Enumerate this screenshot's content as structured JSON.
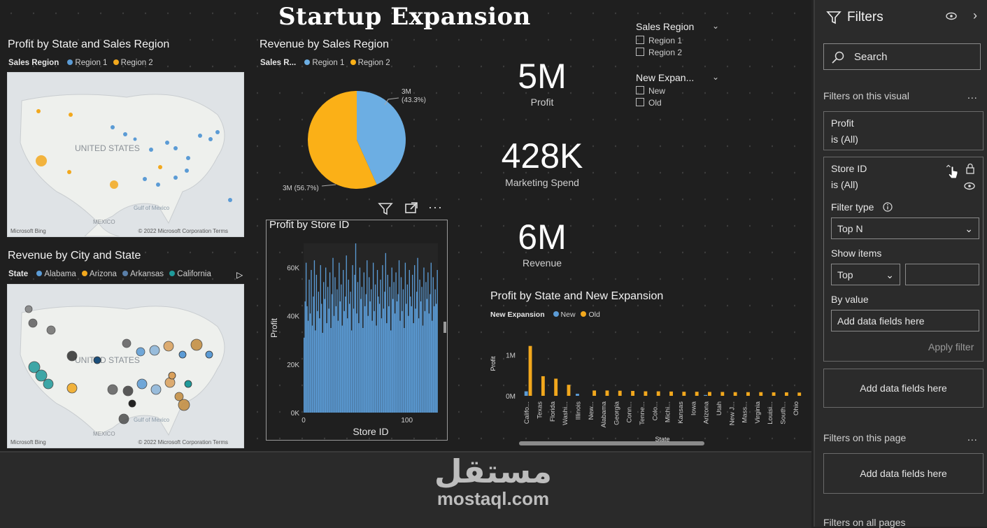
{
  "report": {
    "title": "Startup Expansion"
  },
  "map1": {
    "title": "Profit by State and Sales Region",
    "legend_title": "Sales Region",
    "legend": [
      {
        "label": "Region 1",
        "color": "#5b9bd5"
      },
      {
        "label": "Region 2",
        "color": "#f2a81d"
      }
    ],
    "country_label": "UNITED STATES",
    "gulf_label": "Gulf of Mexico",
    "mexico_label": "MEXICO",
    "bing_label": "Microsoft Bing",
    "copyright": "© 2022 Microsoft Corporation  Terms"
  },
  "map2": {
    "title": "Revenue by City and State",
    "legend_title": "State",
    "legend": [
      {
        "label": "Alabama",
        "color": "#5b9bd5"
      },
      {
        "label": "Arizona",
        "color": "#f2a81d"
      },
      {
        "label": "Arkansas",
        "color": "#5a7fa8"
      },
      {
        "label": "California",
        "color": "#1f9a9a"
      }
    ],
    "country_label": "UNITED STATES",
    "gulf_label": "Gulf of Mexico",
    "mexico_label": "MEXICO",
    "bing_label": "Microsoft Bing",
    "copyright": "© 2022 Microsoft Corporation  Terms"
  },
  "pie": {
    "title": "Revenue by Sales Region",
    "legend_title": "Sales R...",
    "legend": [
      {
        "label": "Region 1",
        "color": "#6caee3"
      },
      {
        "label": "Region 2",
        "color": "#fbb017"
      }
    ],
    "label_region1_value": "3M",
    "label_region1_pct": "(43.3%)",
    "label_region2": "3M (56.7%)"
  },
  "kpis": [
    {
      "value": "5M",
      "label": "Profit"
    },
    {
      "value": "428K",
      "label": "Marketing Spend"
    },
    {
      "value": "6M",
      "label": "Revenue"
    }
  ],
  "slicers": {
    "sales_region": {
      "title": "Sales Region",
      "items": [
        "Region 1",
        "Region 2"
      ]
    },
    "new_expansion": {
      "title": "New Expan...",
      "items": [
        "New",
        "Old"
      ]
    }
  },
  "bar_chart": {
    "title": "Profit by State and New Expansion"
  },
  "col_chart": {
    "title": "Profit by Store ID"
  },
  "chart_data": [
    {
      "type": "pie",
      "title": "Revenue by Sales Region",
      "legend_title": "Sales R...",
      "categories": [
        "Region 1",
        "Region 2"
      ],
      "values": [
        43.3,
        56.7
      ],
      "value_labels": [
        "3M",
        "3M"
      ],
      "colors": [
        "#6caee3",
        "#fbb017"
      ]
    },
    {
      "type": "bar",
      "title": "Profit by Store ID",
      "xlabel": "Store ID",
      "ylabel": "Profit",
      "ylim": [
        0,
        70000
      ],
      "yticks": [
        "0K",
        "20K",
        "40K",
        "60K"
      ],
      "xticks": [
        "0",
        "100"
      ],
      "color": "#5b9bd5",
      "values": [
        31000,
        46000,
        62000,
        44000,
        38000,
        55000,
        41000,
        59000,
        36000,
        48000,
        63000,
        34000,
        57000,
        42000,
        50000,
        39000,
        61000,
        45000,
        33000,
        54000,
        47000,
        60000,
        37000,
        52000,
        43000,
        58000,
        35000,
        49000,
        64000,
        40000,
        56000,
        44000,
        51000,
        38000,
        62000,
        46000,
        53000,
        36000,
        59000,
        42000,
        48000,
        65000,
        39000,
        55000,
        45000,
        50000,
        34000,
        61000,
        43000,
        57000,
        70000,
        41000,
        54000,
        37000,
        60000,
        47000,
        52000,
        35000,
        58000,
        44000,
        49000,
        63000,
        40000,
        56000,
        46000,
        51000,
        38000,
        62000,
        42000,
        53000,
        36000,
        59000,
        48000,
        45000,
        55000,
        39000,
        61000,
        43000,
        50000,
        66000,
        37000,
        57000,
        44000,
        52000,
        34000,
        60000,
        47000,
        54000,
        41000,
        58000,
        46000,
        49000,
        63000,
        38000,
        56000,
        42000,
        51000,
        35000,
        62000,
        45000,
        53000,
        40000,
        59000,
        48000,
        44000,
        57000,
        37000,
        61000,
        43000,
        50000,
        64000,
        39000,
        55000,
        46000,
        52000,
        36000,
        60000,
        42000,
        54000,
        47000,
        58000,
        41000,
        49000,
        62000,
        38000,
        56000,
        44000,
        51000,
        45000,
        59000
      ]
    },
    {
      "type": "bar",
      "title": "Profit by State and New Expansion",
      "legend_title": "New Expansion",
      "xlabel": "State",
      "ylabel": "Profit",
      "ylim": [
        0,
        1300000
      ],
      "yticks": [
        "0M",
        "1M"
      ],
      "categories": [
        "Califo...",
        "Texas",
        "Florida",
        "Washi...",
        "Illinois",
        "New...",
        "Alabama",
        "Georgia",
        "Conn...",
        "Tenne...",
        "Colo...",
        "Michi...",
        "Kansas",
        "Iowa",
        "Arizona",
        "Utah",
        "New J...",
        "Mass...",
        "Virginia",
        "Louisi...",
        "South...",
        "Ohio"
      ],
      "series": [
        {
          "name": "New",
          "color": "#5b9bd5",
          "values": [
            110000,
            0,
            0,
            0,
            50000,
            0,
            0,
            0,
            0,
            0,
            0,
            0,
            0,
            0,
            20000,
            0,
            0,
            0,
            0,
            0,
            0,
            0
          ]
        },
        {
          "name": "Old",
          "color": "#f2a81d",
          "values": [
            1220000,
            480000,
            420000,
            270000,
            0,
            130000,
            130000,
            125000,
            120000,
            110000,
            110000,
            105000,
            100000,
            100000,
            95000,
            95000,
            90000,
            90000,
            90000,
            85000,
            85000,
            80000
          ]
        }
      ]
    }
  ],
  "filters": {
    "title": "Filters",
    "search_placeholder": "Search",
    "on_visual_label": "Filters on this visual",
    "more": "...",
    "profit_card": {
      "name": "Profit",
      "state": "is (All)"
    },
    "store_card": {
      "name": "Store ID",
      "state": "is (All)",
      "filter_type_label": "Filter type",
      "filter_type_value": "Top N",
      "show_items_label": "Show items",
      "show_items_value": "Top",
      "show_items_count": "",
      "by_value_label": "By value",
      "by_value_placeholder": "Add data fields here",
      "apply": "Apply filter"
    },
    "add_fields_visual": "Add data fields here",
    "on_page_label": "Filters on this page",
    "add_fields_page": "Add data fields here",
    "on_all_pages_label": "Filters on all pages"
  },
  "watermark": {
    "arabic": "مستقل",
    "latin": "mostaql.com"
  }
}
